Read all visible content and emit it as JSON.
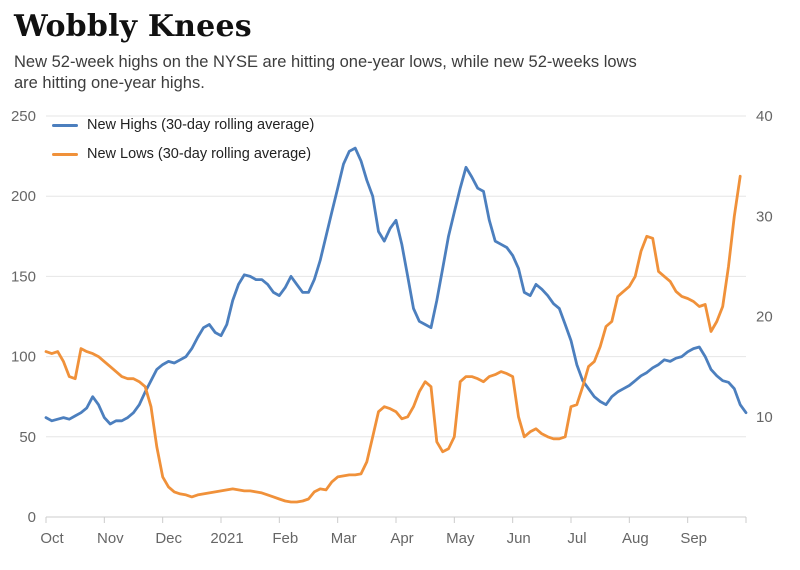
{
  "chart_data": {
    "type": "line",
    "title": "Wobbly Knees",
    "subtitle_lines": [
      "New 52-week highs on the NYSE are hitting one-year lows, while new 52-weeks lows",
      "are hitting one-year highs."
    ],
    "x_tick_labels": [
      "Oct",
      "Nov",
      "Dec",
      "2021",
      "Feb",
      "Mar",
      "Apr",
      "May",
      "Jun",
      "Jul",
      "Aug",
      "Sep"
    ],
    "x_months_total": 12,
    "left_axis": {
      "range": [
        0,
        250
      ],
      "ticks": [
        0,
        50,
        100,
        150,
        200,
        250
      ]
    },
    "right_axis": {
      "range": [
        0,
        40
      ],
      "ticks": [
        10,
        20,
        30,
        40
      ]
    },
    "grid": "horizontal",
    "legend_position": "top-left-inside",
    "axis_text_color": "#666666",
    "gridline_color": "#e6e6e6",
    "axisline_color": "#cccccc",
    "series": [
      {
        "id": "new-highs",
        "name": "New Highs (30-day rolling average)",
        "axis": "left",
        "color": "#4c7fbe",
        "x_start": 0,
        "x_step": 0.1,
        "values": [
          62,
          60,
          61,
          62,
          61,
          63,
          65,
          68,
          75,
          70,
          62,
          58,
          60,
          60,
          62,
          65,
          70,
          78,
          85,
          92,
          95,
          97,
          96,
          98,
          100,
          105,
          112,
          118,
          120,
          115,
          113,
          120,
          135,
          145,
          151,
          150,
          148,
          148,
          145,
          140,
          138,
          143,
          150,
          145,
          140,
          140,
          148,
          160,
          175,
          190,
          205,
          220,
          228,
          230,
          222,
          210,
          200,
          178,
          172,
          180,
          185,
          170,
          150,
          130,
          122,
          120,
          118,
          135,
          155,
          175,
          190,
          205,
          218,
          212,
          205,
          203,
          185,
          172,
          170,
          168,
          163,
          155,
          140,
          138,
          145,
          142,
          138,
          133,
          130,
          120,
          110,
          95,
          85,
          80,
          75,
          72,
          70,
          75,
          78,
          80,
          82,
          85,
          88,
          90,
          93,
          95,
          98,
          97,
          99,
          100,
          103,
          105,
          106,
          100,
          92,
          88,
          85,
          84,
          80,
          70,
          65
        ]
      },
      {
        "id": "new-lows",
        "name": "New Lows (30-day rolling average)",
        "axis": "right",
        "color": "#f0913a",
        "x_start": 0,
        "x_step": 0.1,
        "values": [
          16.5,
          16.3,
          16.5,
          15.5,
          14.0,
          13.8,
          16.8,
          16.5,
          16.3,
          16.0,
          15.5,
          15.0,
          14.5,
          14.0,
          13.8,
          13.8,
          13.5,
          13.0,
          11.0,
          7.0,
          4.0,
          3.0,
          2.5,
          2.3,
          2.2,
          2.0,
          2.2,
          2.3,
          2.4,
          2.5,
          2.6,
          2.7,
          2.8,
          2.7,
          2.6,
          2.6,
          2.5,
          2.4,
          2.2,
          2.0,
          1.8,
          1.6,
          1.5,
          1.5,
          1.6,
          1.8,
          2.5,
          2.8,
          2.7,
          3.5,
          4.0,
          4.1,
          4.2,
          4.2,
          4.3,
          5.5,
          8.0,
          10.5,
          11.0,
          10.8,
          10.5,
          9.8,
          10.0,
          11.0,
          12.5,
          13.5,
          13.0,
          7.5,
          6.5,
          6.8,
          8.0,
          13.5,
          14.0,
          14.0,
          13.8,
          13.5,
          14.0,
          14.2,
          14.5,
          14.3,
          14.0,
          10.0,
          8.0,
          8.5,
          8.8,
          8.3,
          8.0,
          7.8,
          7.8,
          8.0,
          11.0,
          11.2,
          13.0,
          15.0,
          15.5,
          17.0,
          19.0,
          19.5,
          22.0,
          22.5,
          23.0,
          24.0,
          26.5,
          28.0,
          27.8,
          24.5,
          24.0,
          23.5,
          22.5,
          22.0,
          21.8,
          21.5,
          21.0,
          21.2,
          18.5,
          19.5,
          21.0,
          25.0,
          30.0,
          34.0
        ]
      }
    ]
  }
}
